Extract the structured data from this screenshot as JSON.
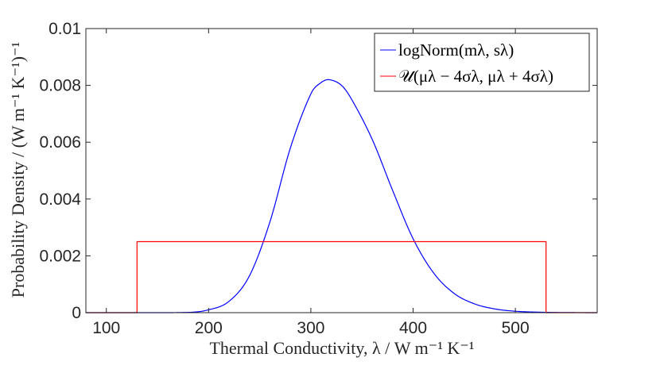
{
  "chart_data": {
    "type": "line",
    "xlabel": "Thermal Conductivity, λ / W m⁻¹ K⁻¹",
    "ylabel": "Probability Density / (W m⁻¹ K⁻¹)⁻¹",
    "xlim": [
      80,
      580
    ],
    "ylim": [
      0,
      0.01
    ],
    "x_ticks": [
      100,
      200,
      300,
      400,
      500
    ],
    "x_tick_labels": [
      "100",
      "200",
      "300",
      "400",
      "500"
    ],
    "y_ticks": [
      0,
      0.002,
      0.004,
      0.006,
      0.008,
      0.01
    ],
    "y_tick_labels": [
      "0",
      "0.002",
      "0.004",
      "0.006",
      "0.008",
      "0.01"
    ],
    "grid": false,
    "legend_position": "top-right",
    "series": [
      {
        "name": "logNorm(mλ, sλ)",
        "color": "#0000ff",
        "x": [
          80,
          180,
          200,
          220,
          240,
          260,
          280,
          300,
          310,
          318,
          330,
          340,
          360,
          380,
          400,
          420,
          440,
          460,
          480,
          500,
          520,
          540,
          560,
          580
        ],
        "y": [
          0,
          1e-05,
          0.0001,
          0.0004,
          0.0013,
          0.0032,
          0.0058,
          0.0077,
          0.0081,
          0.0082,
          0.008,
          0.0075,
          0.0061,
          0.0043,
          0.0026,
          0.0014,
          0.00068,
          0.00031,
          0.00013,
          5e-05,
          2e-05,
          7e-06,
          2e-06,
          0
        ]
      },
      {
        "name": "𝒰(μλ − 4σλ, μλ + 4σλ)",
        "color": "#ff0000",
        "x": [
          80,
          130,
          130,
          530,
          530,
          580
        ],
        "y": [
          0,
          0,
          0.0025,
          0.0025,
          0,
          0
        ]
      }
    ]
  }
}
